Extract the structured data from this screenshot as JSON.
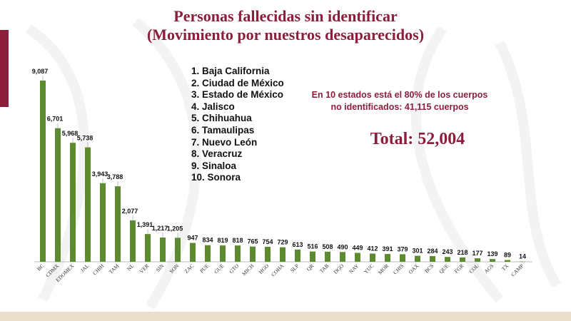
{
  "title_line1": "Personas fallecidas sin identificar",
  "title_line2": "(Movimiento por nuestros desaparecidos)",
  "states_list": [
    "1. Baja California",
    "2. Ciudad de México",
    "3. Estado de México",
    "4. Jalisco",
    "5. Chihuahua",
    "6. Tamaulipas",
    "7. Nuevo León",
    "8. Veracruz",
    "9. Sinaloa",
    "10. Sonora"
  ],
  "note": "En 10 estados está el 80% de los cuerpos no identificados: 41,115 cuerpos",
  "total": "Total: 52,004",
  "colors": {
    "accent": "#8c1e3c",
    "bar": "#5c8a2e",
    "band": "#eadfcb"
  },
  "chart_data": {
    "type": "bar",
    "categories": [
      "BC",
      "CDMX",
      "EDOMEX",
      "JAL",
      "CHIH",
      "TAM",
      "NL",
      "VER",
      "SIN",
      "SON",
      "ZAC",
      "PUE",
      "GUE",
      "GTO",
      "MICH",
      "HGO",
      "COHA",
      "SLP",
      "QR",
      "TAB",
      "DGO",
      "NAY",
      "YUC",
      "MOR",
      "CHIS",
      "OAX",
      "BCS",
      "QUE",
      "FGR",
      "COL",
      "AGS",
      "TX",
      "CAMP"
    ],
    "values": [
      9087,
      6701,
      5968,
      5738,
      3943,
      3788,
      2077,
      1391,
      1217,
      1205,
      947,
      834,
      819,
      818,
      765,
      754,
      729,
      613,
      516,
      508,
      490,
      449,
      412,
      391,
      379,
      301,
      284,
      243,
      218,
      177,
      139,
      89,
      14
    ],
    "value_labels": [
      "9,087",
      "6,701",
      "5,968",
      "5,738",
      "3,943",
      "3,788",
      "2,077",
      "1,391",
      "1,217",
      "1,205",
      "947",
      "834",
      "819",
      "818",
      "765",
      "754",
      "729",
      "613",
      "516",
      "508",
      "490",
      "449",
      "412",
      "391",
      "379",
      "301",
      "284",
      "243",
      "218",
      "177",
      "139",
      "89",
      "14"
    ],
    "ylim": [
      0,
      9087
    ],
    "grid": false,
    "legend": "none"
  }
}
